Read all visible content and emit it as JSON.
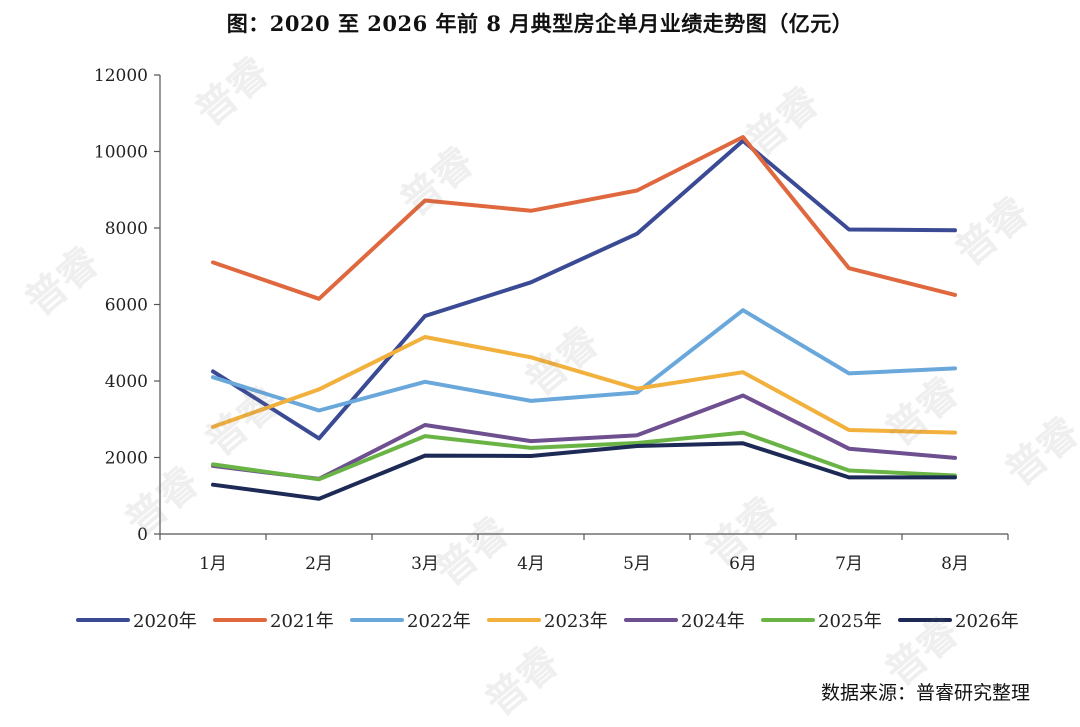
{
  "title": "图：2020 至 2026 年前 8 月典型房企单月业绩走势图（亿元）",
  "source": "数据来源：普睿研究整理",
  "watermark": "普睿",
  "chart_data": {
    "type": "line",
    "categories": [
      "1月",
      "2月",
      "3月",
      "4月",
      "5月",
      "6月",
      "7月",
      "8月"
    ],
    "ylim": [
      0,
      12000
    ],
    "yticks": [
      0,
      2000,
      4000,
      6000,
      8000,
      10000,
      12000
    ],
    "grid": false,
    "legend_position": "bottom",
    "series": [
      {
        "name": "2020年",
        "color": "#3a4a94",
        "values": [
          4250,
          2500,
          5700,
          6580,
          7850,
          10280,
          7960,
          7940
        ]
      },
      {
        "name": "2021年",
        "color": "#e0683e",
        "values": [
          7100,
          6150,
          8720,
          8450,
          8980,
          10380,
          6950,
          6250
        ]
      },
      {
        "name": "2022年",
        "color": "#6aa8dc",
        "values": [
          4100,
          3230,
          3980,
          3480,
          3700,
          5850,
          4200,
          4330
        ]
      },
      {
        "name": "2023年",
        "color": "#f2b03d",
        "values": [
          2800,
          3780,
          5150,
          4620,
          3800,
          4230,
          2720,
          2650
        ]
      },
      {
        "name": "2024年",
        "color": "#6e4f8f",
        "values": [
          1780,
          1440,
          2850,
          2430,
          2580,
          3620,
          2230,
          1990
        ]
      },
      {
        "name": "2025年",
        "color": "#6ab446",
        "values": [
          1820,
          1430,
          2560,
          2250,
          2380,
          2650,
          1660,
          1530
        ]
      },
      {
        "name": "2026年",
        "color": "#1d2a55",
        "values": [
          1290,
          920,
          2050,
          2040,
          2300,
          2370,
          1480,
          1480
        ]
      }
    ]
  }
}
